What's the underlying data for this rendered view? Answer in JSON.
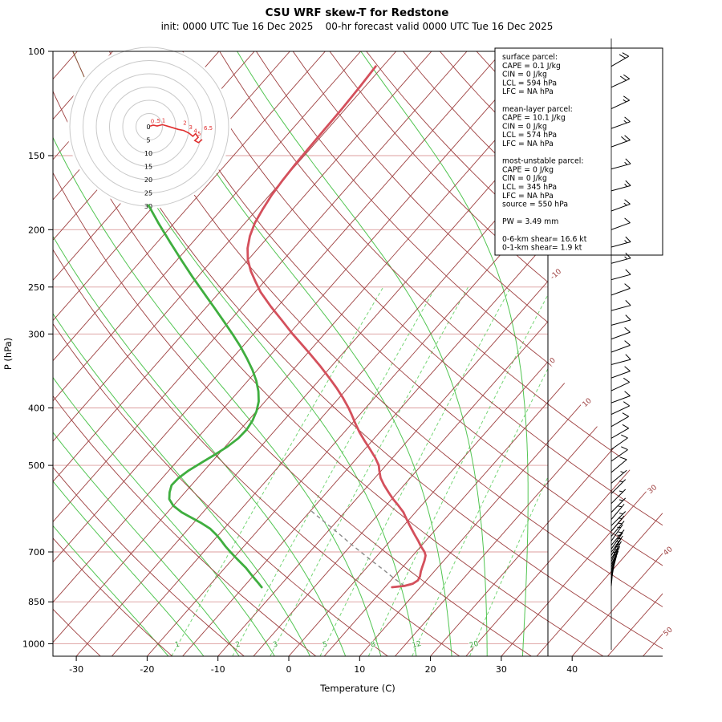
{
  "title": "CSU WRF skew-T for Redstone",
  "subtitle": "init: 0000 UTC Tue 16 Dec 2025    00-hr forecast valid 0000 UTC Tue 16 Dec 2025",
  "axes": {
    "x_label": "Temperature (C)",
    "y_label": "P (hPa)",
    "x_ticks": [
      -30,
      -20,
      -10,
      0,
      10,
      20,
      30,
      40
    ],
    "y_ticks": [
      100,
      150,
      200,
      250,
      300,
      400,
      500,
      700,
      850,
      1000
    ]
  },
  "grid": {
    "isotherm_labels": [
      -10,
      0,
      10,
      30,
      40,
      50
    ],
    "mixing_ratio_lines": [
      1,
      2,
      3,
      5,
      8,
      12,
      20
    ],
    "moist_adiabat_starts": [
      -17,
      -12,
      -7,
      -2,
      3,
      8,
      13,
      18,
      23,
      28,
      33,
      38
    ],
    "dry_adiabat_theta_range": [
      -60,
      170,
      10
    ],
    "isotherm_range": [
      -110,
      55,
      5
    ]
  },
  "colors": {
    "grid_line": "#9e4040",
    "pressure_line": "#dc9d9d",
    "mixing_line": "#76d676",
    "moist_adiabat": "#52c552",
    "temperature": "#d4505c",
    "dewpoint": "#3fae3f",
    "parcel": "#8a8a8a",
    "hodo_ring": "#c9c9c9",
    "hodo_trace": "#e02f2f",
    "barb": "#000000"
  },
  "info_box": {
    "lines": [
      "surface parcel:",
      "CAPE = 0.1 J/kg",
      "CIN = 0 J/kg",
      "LCL = 594 hPa",
      "LFC = NA hPa",
      "",
      "mean-layer parcel:",
      "CAPE = 10.1 J/kg",
      "CIN = 0 J/kg",
      "LCL = 574 hPa",
      "LFC = NA hPa",
      "",
      "most-unstable parcel:",
      "CAPE = 0 J/kg",
      "CIN = 0 J/kg",
      "LCL = 345 hPa",
      "LFC = NA hPa",
      "source = 550 hPa",
      "",
      "PW =  3.49 mm",
      "",
      "0-6-km shear= 16.6 kt",
      "0-1-km shear= 1.9 kt"
    ]
  },
  "chart_data": {
    "type": "line",
    "subtype": "skew-T log-p sounding",
    "title": "CSU WRF skew-T for Redstone",
    "xlabel": "Temperature (C)",
    "ylabel": "P (hPa)",
    "x_range_C": [
      -30,
      40
    ],
    "p_range_hPa": [
      100,
      1050
    ],
    "temperature_profile_p_C": [
      [
        803,
        6.0
      ],
      [
        799,
        7.6
      ],
      [
        792,
        8.5
      ],
      [
        782,
        8.8
      ],
      [
        770,
        8.6
      ],
      [
        755,
        8.1
      ],
      [
        740,
        7.7
      ],
      [
        725,
        7.3
      ],
      [
        710,
        6.8
      ],
      [
        700,
        6.2
      ],
      [
        685,
        5.0
      ],
      [
        670,
        3.9
      ],
      [
        655,
        2.7
      ],
      [
        640,
        1.5
      ],
      [
        625,
        0.3
      ],
      [
        610,
        -0.9
      ],
      [
        600,
        -1.7
      ],
      [
        585,
        -3.2
      ],
      [
        570,
        -4.8
      ],
      [
        555,
        -6.3
      ],
      [
        540,
        -7.8
      ],
      [
        525,
        -9.2
      ],
      [
        510,
        -10.3
      ],
      [
        500,
        -11.0
      ],
      [
        485,
        -12.5
      ],
      [
        470,
        -14.2
      ],
      [
        455,
        -16.0
      ],
      [
        440,
        -17.8
      ],
      [
        425,
        -19.5
      ],
      [
        410,
        -21.2
      ],
      [
        400,
        -22.4
      ],
      [
        385,
        -24.4
      ],
      [
        370,
        -26.6
      ],
      [
        355,
        -29.0
      ],
      [
        340,
        -31.6
      ],
      [
        325,
        -34.4
      ],
      [
        310,
        -37.4
      ],
      [
        300,
        -39.5
      ],
      [
        285,
        -42.6
      ],
      [
        270,
        -45.9
      ],
      [
        255,
        -49.2
      ],
      [
        245,
        -51.2
      ],
      [
        235,
        -53.2
      ],
      [
        225,
        -55.0
      ],
      [
        215,
        -56.5
      ],
      [
        205,
        -57.7
      ],
      [
        195,
        -58.6
      ],
      [
        185,
        -59.2
      ],
      [
        175,
        -59.7
      ],
      [
        165,
        -60.0
      ],
      [
        155,
        -60.2
      ],
      [
        145,
        -60.3
      ],
      [
        135,
        -60.4
      ],
      [
        125,
        -60.5
      ],
      [
        115,
        -60.7
      ],
      [
        106,
        -61.0
      ]
    ],
    "dewpoint_profile_p_C": [
      [
        803,
        -12.4
      ],
      [
        790,
        -13.4
      ],
      [
        775,
        -14.6
      ],
      [
        760,
        -15.8
      ],
      [
        745,
        -17.0
      ],
      [
        730,
        -18.4
      ],
      [
        715,
        -19.8
      ],
      [
        700,
        -21.2
      ],
      [
        685,
        -22.6
      ],
      [
        670,
        -23.9
      ],
      [
        655,
        -25.3
      ],
      [
        640,
        -26.9
      ],
      [
        625,
        -29.0
      ],
      [
        610,
        -31.4
      ],
      [
        600,
        -33.0
      ],
      [
        585,
        -35.0
      ],
      [
        570,
        -36.4
      ],
      [
        555,
        -37.2
      ],
      [
        540,
        -37.8
      ],
      [
        525,
        -37.7
      ],
      [
        510,
        -37.2
      ],
      [
        495,
        -36.4
      ],
      [
        480,
        -35.5
      ],
      [
        465,
        -34.7
      ],
      [
        450,
        -34.2
      ],
      [
        435,
        -34.1
      ],
      [
        420,
        -34.4
      ],
      [
        405,
        -35.0
      ],
      [
        390,
        -35.9
      ],
      [
        375,
        -37.2
      ],
      [
        360,
        -38.8
      ],
      [
        345,
        -40.7
      ],
      [
        330,
        -42.9
      ],
      [
        315,
        -45.3
      ],
      [
        300,
        -48.0
      ],
      [
        285,
        -50.9
      ],
      [
        270,
        -54.0
      ],
      [
        255,
        -57.3
      ],
      [
        240,
        -60.8
      ],
      [
        225,
        -64.4
      ],
      [
        210,
        -68.2
      ],
      [
        195,
        -72.2
      ],
      [
        182,
        -75.8
      ]
    ],
    "parcel_trace_p_C": [
      [
        799,
        7.6
      ],
      [
        775,
        5.1
      ],
      [
        750,
        2.6
      ],
      [
        725,
        -0.1
      ],
      [
        700,
        -2.8
      ],
      [
        675,
        -5.6
      ],
      [
        650,
        -8.4
      ],
      [
        625,
        -11.4
      ],
      [
        600,
        -14.5
      ],
      [
        594,
        -15.2
      ]
    ],
    "winds_p_kt_dir": [
      [
        106,
        20,
        240
      ],
      [
        115,
        20,
        245
      ],
      [
        125,
        15,
        245
      ],
      [
        135,
        15,
        250
      ],
      [
        145,
        20,
        250
      ],
      [
        158,
        15,
        255
      ],
      [
        172,
        15,
        255
      ],
      [
        186,
        15,
        250
      ],
      [
        200,
        12,
        250
      ],
      [
        214,
        15,
        255
      ],
      [
        228,
        15,
        255
      ],
      [
        243,
        12,
        255
      ],
      [
        258,
        10,
        250
      ],
      [
        274,
        10,
        255
      ],
      [
        290,
        12,
        255
      ],
      [
        306,
        10,
        250
      ],
      [
        322,
        10,
        250
      ],
      [
        338,
        10,
        255
      ],
      [
        356,
        10,
        250
      ],
      [
        374,
        10,
        245
      ],
      [
        392,
        10,
        250
      ],
      [
        410,
        10,
        245
      ],
      [
        430,
        10,
        240
      ],
      [
        450,
        10,
        240
      ],
      [
        470,
        10,
        235
      ],
      [
        492,
        8,
        235
      ],
      [
        514,
        8,
        230
      ],
      [
        536,
        7,
        230
      ],
      [
        558,
        6,
        225
      ],
      [
        580,
        6,
        225
      ],
      [
        600,
        5,
        225
      ],
      [
        617,
        5,
        220
      ],
      [
        632,
        5,
        225
      ],
      [
        646,
        5,
        220
      ],
      [
        659,
        5,
        220
      ],
      [
        671,
        5,
        215
      ],
      [
        682,
        5,
        220
      ],
      [
        692,
        5,
        215
      ],
      [
        701,
        4,
        215
      ],
      [
        710,
        4,
        210
      ],
      [
        719,
        4,
        210
      ],
      [
        727,
        3,
        205
      ],
      [
        735,
        3,
        205
      ],
      [
        743,
        3,
        200
      ],
      [
        751,
        3,
        200
      ],
      [
        759,
        2,
        195
      ],
      [
        767,
        2,
        195
      ],
      [
        775,
        2,
        190
      ],
      [
        783,
        2,
        190
      ],
      [
        791,
        2,
        185
      ],
      [
        799,
        2,
        185
      ]
    ],
    "hodograph": {
      "rings": [
        5,
        10,
        15,
        20,
        25,
        30
      ],
      "ring_labels": [
        0,
        5,
        10,
        15,
        20,
        25,
        30
      ],
      "trace_u_v_kt": [
        [
          0.3,
          0.2
        ],
        [
          1.5,
          0.6
        ],
        [
          3,
          0.3
        ],
        [
          5,
          0.8
        ],
        [
          7,
          0.2
        ],
        [
          9,
          -0.4
        ],
        [
          11,
          -1.0
        ],
        [
          13,
          -1.4
        ],
        [
          15,
          -2.4
        ],
        [
          16.5,
          -3.6
        ],
        [
          17.5,
          -2.6
        ],
        [
          18.5,
          -4.0
        ],
        [
          17.2,
          -5.2
        ],
        [
          18.6,
          -6.0
        ],
        [
          20,
          -4.8
        ]
      ],
      "height_labels": [
        [
          "0",
          0.5,
          1.3
        ],
        [
          ".5",
          2.2,
          1.5
        ],
        [
          "1",
          4.8,
          1.6
        ],
        [
          "2",
          12.8,
          0.8
        ],
        [
          "3",
          15,
          -0.9
        ],
        [
          "4",
          16.8,
          -2.2
        ],
        [
          "5",
          18.2,
          -3.4
        ],
        [
          "6.5",
          20.6,
          -1.2
        ]
      ]
    }
  }
}
